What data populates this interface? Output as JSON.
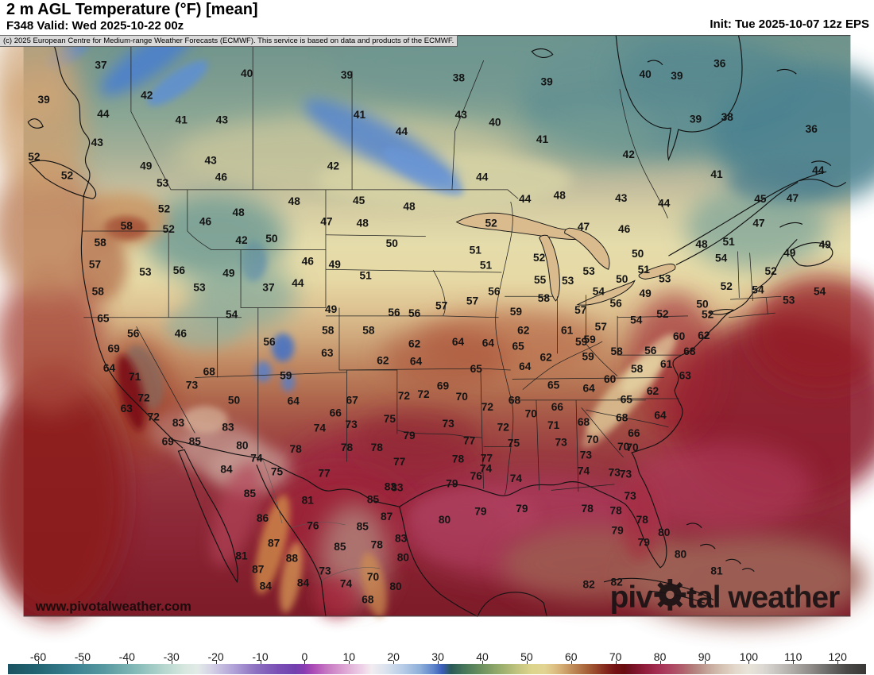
{
  "header": {
    "title": "2 m AGL Temperature (°F) [mean]",
    "valid": "F348 Valid: Wed 2025-10-22 00z",
    "init": "Init: Tue 2025-10-07 12z EPS"
  },
  "copyright": "(c) 2025 European Centre for Medium-range Weather Forecasts (ECMWF). This service is based on data and products of the ECMWF.",
  "watermark": "www.pivotalweather.com",
  "logo": {
    "left": "piv",
    "right": "tal weather"
  },
  "colorbar": {
    "ticks": [
      -60,
      -50,
      -40,
      -30,
      -20,
      -10,
      0,
      10,
      20,
      30,
      40,
      50,
      60,
      70,
      80,
      90,
      100,
      110,
      120
    ],
    "stops": [
      {
        "v": -66,
        "c": "#1b5563"
      },
      {
        "v": -60,
        "c": "#236573"
      },
      {
        "v": -52,
        "c": "#3b8191"
      },
      {
        "v": -45,
        "c": "#5899a1"
      },
      {
        "v": -38,
        "c": "#85bab8"
      },
      {
        "v": -32,
        "c": "#b3d5cd"
      },
      {
        "v": -27,
        "c": "#d7e7df"
      },
      {
        "v": -24,
        "c": "#e2eae8"
      },
      {
        "v": -21,
        "c": "#d5d2e6"
      },
      {
        "v": -16,
        "c": "#b1a2d8"
      },
      {
        "v": -11,
        "c": "#8d71c1"
      },
      {
        "v": -6,
        "c": "#7a4fb5"
      },
      {
        "v": -2,
        "c": "#7240ae"
      },
      {
        "v": 0,
        "c": "#8a3cb2"
      },
      {
        "v": 2,
        "c": "#ad4cb6"
      },
      {
        "v": 5,
        "c": "#c777c2"
      },
      {
        "v": 9,
        "c": "#dda5d3"
      },
      {
        "v": 13,
        "c": "#eed2e8"
      },
      {
        "v": 15,
        "c": "#f2ecf0"
      },
      {
        "v": 18,
        "c": "#dde4ef"
      },
      {
        "v": 22,
        "c": "#b9cde7"
      },
      {
        "v": 26,
        "c": "#8fb0da"
      },
      {
        "v": 29,
        "c": "#5f85cb"
      },
      {
        "v": 31,
        "c": "#3a5cb8"
      },
      {
        "v": 33,
        "c": "#2a5a55"
      },
      {
        "v": 36,
        "c": "#47775a"
      },
      {
        "v": 40,
        "c": "#6f925f"
      },
      {
        "v": 44,
        "c": "#98ad6c"
      },
      {
        "v": 48,
        "c": "#c2c47e"
      },
      {
        "v": 51,
        "c": "#dcd48d"
      },
      {
        "v": 54,
        "c": "#e2d492"
      },
      {
        "v": 56,
        "c": "#dec285"
      },
      {
        "v": 58,
        "c": "#d3ab72"
      },
      {
        "v": 60,
        "c": "#c28f5b"
      },
      {
        "v": 62,
        "c": "#b37647"
      },
      {
        "v": 64,
        "c": "#a45c36"
      },
      {
        "v": 66,
        "c": "#944128"
      },
      {
        "v": 68,
        "c": "#83261c"
      },
      {
        "v": 70,
        "c": "#731114"
      },
      {
        "v": 72,
        "c": "#690d10"
      },
      {
        "v": 73,
        "c": "#6f0f1d"
      },
      {
        "v": 75,
        "c": "#82152e"
      },
      {
        "v": 77,
        "c": "#93203f"
      },
      {
        "v": 79,
        "c": "#a02b4e"
      },
      {
        "v": 81,
        "c": "#aa3a5c"
      },
      {
        "v": 83,
        "c": "#ae4b64"
      },
      {
        "v": 85,
        "c": "#b05f6c"
      },
      {
        "v": 87,
        "c": "#b27878"
      },
      {
        "v": 89,
        "c": "#ba8f88"
      },
      {
        "v": 91,
        "c": "#c6a89c"
      },
      {
        "v": 94,
        "c": "#d6c3b4"
      },
      {
        "v": 97,
        "c": "#e3d8cb"
      },
      {
        "v": 100,
        "c": "#e9e4da"
      },
      {
        "v": 103,
        "c": "#ddd9d3"
      },
      {
        "v": 106,
        "c": "#cac6c2"
      },
      {
        "v": 110,
        "c": "#aeaaa6"
      },
      {
        "v": 114,
        "c": "#8e8b88"
      },
      {
        "v": 118,
        "c": "#6b6967"
      },
      {
        "v": 122,
        "c": "#4b4947"
      },
      {
        "v": 126,
        "c": "#3b3937"
      }
    ]
  },
  "map": {
    "label_color": "#141414",
    "labels": [
      [
        37,
        103,
        84
      ],
      [
        40,
        297,
        95
      ],
      [
        39,
        430,
        97
      ],
      [
        38,
        579,
        101
      ],
      [
        39,
        696,
        106
      ],
      [
        40,
        827,
        96
      ],
      [
        39,
        869,
        98
      ],
      [
        36,
        926,
        82
      ],
      [
        39,
        894,
        156
      ],
      [
        38,
        936,
        153
      ],
      [
        36,
        1048,
        169
      ],
      [
        39,
        27,
        130
      ],
      [
        42,
        164,
        124
      ],
      [
        44,
        106,
        149
      ],
      [
        41,
        210,
        157
      ],
      [
        43,
        264,
        157
      ],
      [
        43,
        582,
        150
      ],
      [
        40,
        627,
        160
      ],
      [
        41,
        690,
        183
      ],
      [
        42,
        805,
        203
      ],
      [
        41,
        922,
        229
      ],
      [
        44,
        1057,
        224
      ],
      [
        43,
        98,
        187
      ],
      [
        49,
        163,
        218
      ],
      [
        52,
        14,
        206
      ],
      [
        52,
        58,
        231
      ],
      [
        53,
        185,
        241
      ],
      [
        43,
        249,
        211
      ],
      [
        42,
        412,
        218
      ],
      [
        46,
        263,
        233
      ],
      [
        44,
        610,
        233
      ],
      [
        41,
        447,
        150
      ],
      [
        44,
        503,
        172
      ],
      [
        45,
        980,
        262
      ],
      [
        47,
        1023,
        261
      ],
      [
        49,
        1066,
        323
      ],
      [
        49,
        1019,
        334
      ],
      [
        47,
        978,
        294
      ],
      [
        48,
        902,
        322
      ],
      [
        51,
        938,
        319
      ],
      [
        54,
        928,
        341
      ],
      [
        44,
        667,
        262
      ],
      [
        48,
        713,
        257
      ],
      [
        43,
        795,
        261
      ],
      [
        44,
        852,
        268
      ],
      [
        52,
        622,
        294
      ],
      [
        47,
        745,
        299
      ],
      [
        46,
        799,
        302
      ],
      [
        48,
        360,
        265
      ],
      [
        45,
        446,
        264
      ],
      [
        48,
        513,
        272
      ],
      [
        47,
        403,
        292
      ],
      [
        48,
        451,
        294
      ],
      [
        50,
        330,
        315
      ],
      [
        50,
        490,
        321
      ],
      [
        42,
        290,
        317
      ],
      [
        52,
        187,
        275
      ],
      [
        58,
        137,
        298
      ],
      [
        52,
        193,
        302
      ],
      [
        46,
        242,
        292
      ],
      [
        48,
        286,
        280
      ],
      [
        58,
        102,
        320
      ],
      [
        57,
        95,
        349
      ],
      [
        53,
        162,
        359
      ],
      [
        56,
        207,
        357
      ],
      [
        49,
        273,
        361
      ],
      [
        53,
        234,
        380
      ],
      [
        58,
        99,
        385
      ],
      [
        46,
        378,
        345
      ],
      [
        49,
        414,
        349
      ],
      [
        51,
        455,
        364
      ],
      [
        37,
        326,
        380
      ],
      [
        44,
        365,
        374
      ],
      [
        49,
        409,
        409
      ],
      [
        54,
        277,
        416
      ],
      [
        51,
        601,
        330
      ],
      [
        51,
        615,
        350
      ],
      [
        52,
        686,
        340
      ],
      [
        53,
        752,
        358
      ],
      [
        51,
        825,
        356
      ],
      [
        53,
        853,
        368
      ],
      [
        50,
        817,
        335
      ],
      [
        55,
        687,
        370
      ],
      [
        53,
        724,
        371
      ],
      [
        50,
        796,
        369
      ],
      [
        52,
        935,
        378
      ],
      [
        52,
        994,
        358
      ],
      [
        54,
        977,
        383
      ],
      [
        54,
        765,
        385
      ],
      [
        49,
        827,
        388
      ],
      [
        56,
        626,
        385
      ],
      [
        56,
        788,
        401
      ],
      [
        53,
        1018,
        397
      ],
      [
        54,
        1059,
        385
      ],
      [
        57,
        597,
        398
      ],
      [
        58,
        692,
        394
      ],
      [
        50,
        903,
        402
      ],
      [
        59,
        655,
        412
      ],
      [
        52,
        850,
        415
      ],
      [
        57,
        741,
        410
      ],
      [
        54,
        815,
        423
      ],
      [
        52,
        910,
        416
      ],
      [
        62,
        665,
        437
      ],
      [
        61,
        723,
        437
      ],
      [
        57,
        768,
        432
      ],
      [
        60,
        872,
        445
      ],
      [
        62,
        905,
        444
      ],
      [
        57,
        556,
        404
      ],
      [
        56,
        520,
        414
      ],
      [
        58,
        405,
        437
      ],
      [
        58,
        459,
        437
      ],
      [
        56,
        493,
        413
      ],
      [
        63,
        404,
        467
      ],
      [
        62,
        520,
        455
      ],
      [
        62,
        478,
        477
      ],
      [
        64,
        522,
        478
      ],
      [
        59,
        753,
        449
      ],
      [
        59,
        751,
        472
      ],
      [
        65,
        106,
        421
      ],
      [
        56,
        146,
        441
      ],
      [
        46,
        209,
        441
      ],
      [
        69,
        120,
        461
      ],
      [
        64,
        114,
        487
      ],
      [
        71,
        148,
        499
      ],
      [
        72,
        160,
        527
      ],
      [
        73,
        224,
        510
      ],
      [
        63,
        137,
        541
      ],
      [
        72,
        173,
        552
      ],
      [
        83,
        206,
        560
      ],
      [
        69,
        192,
        585
      ],
      [
        85,
        228,
        585
      ],
      [
        68,
        247,
        492
      ],
      [
        59,
        349,
        497
      ],
      [
        50,
        280,
        530
      ],
      [
        64,
        359,
        531
      ],
      [
        67,
        437,
        530
      ],
      [
        72,
        506,
        524
      ],
      [
        66,
        415,
        547
      ],
      [
        74,
        394,
        567
      ],
      [
        73,
        436,
        562
      ],
      [
        75,
        487,
        555
      ],
      [
        78,
        470,
        593
      ],
      [
        79,
        513,
        577
      ],
      [
        83,
        272,
        566
      ],
      [
        80,
        291,
        590
      ],
      [
        78,
        362,
        595
      ],
      [
        78,
        430,
        593
      ],
      [
        74,
        310,
        607
      ],
      [
        75,
        337,
        625
      ],
      [
        77,
        400,
        627
      ],
      [
        84,
        270,
        622
      ],
      [
        77,
        500,
        612
      ],
      [
        83,
        488,
        645
      ],
      [
        56,
        327,
        452
      ],
      [
        64,
        578,
        452
      ],
      [
        64,
        618,
        454
      ],
      [
        65,
        658,
        458
      ],
      [
        59,
        742,
        452
      ],
      [
        58,
        789,
        465
      ],
      [
        56,
        834,
        464
      ],
      [
        68,
        886,
        465
      ],
      [
        61,
        855,
        482
      ],
      [
        58,
        816,
        488
      ],
      [
        63,
        880,
        497
      ],
      [
        69,
        558,
        511
      ],
      [
        70,
        583,
        525
      ],
      [
        60,
        780,
        502
      ],
      [
        62,
        695,
        473
      ],
      [
        65,
        705,
        510
      ],
      [
        64,
        752,
        514
      ],
      [
        62,
        837,
        518
      ],
      [
        65,
        602,
        488
      ],
      [
        64,
        667,
        485
      ],
      [
        65,
        802,
        529
      ],
      [
        72,
        617,
        539
      ],
      [
        66,
        710,
        539
      ],
      [
        70,
        675,
        548
      ],
      [
        68,
        653,
        530
      ],
      [
        68,
        796,
        553
      ],
      [
        64,
        847,
        550
      ],
      [
        72,
        532,
        522
      ],
      [
        73,
        565,
        561
      ],
      [
        72,
        638,
        566
      ],
      [
        71,
        705,
        563
      ],
      [
        68,
        745,
        559
      ],
      [
        66,
        812,
        574
      ],
      [
        77,
        593,
        584
      ],
      [
        75,
        652,
        587
      ],
      [
        73,
        715,
        586
      ],
      [
        70,
        757,
        582
      ],
      [
        70,
        798,
        592
      ],
      [
        78,
        578,
        608
      ],
      [
        77,
        616,
        607
      ],
      [
        73,
        748,
        603
      ],
      [
        76,
        602,
        631
      ],
      [
        74,
        615,
        621
      ],
      [
        74,
        745,
        624
      ],
      [
        79,
        570,
        641
      ],
      [
        74,
        655,
        634
      ],
      [
        73,
        786,
        626
      ],
      [
        85,
        301,
        654
      ],
      [
        81,
        378,
        663
      ],
      [
        83,
        497,
        646
      ],
      [
        85,
        465,
        662
      ],
      [
        87,
        483,
        685
      ],
      [
        86,
        318,
        687
      ],
      [
        76,
        385,
        697
      ],
      [
        85,
        451,
        698
      ],
      [
        79,
        608,
        678
      ],
      [
        79,
        663,
        674
      ],
      [
        80,
        560,
        689
      ],
      [
        83,
        502,
        714
      ],
      [
        87,
        333,
        720
      ],
      [
        85,
        421,
        725
      ],
      [
        78,
        470,
        722
      ],
      [
        81,
        290,
        737
      ],
      [
        88,
        357,
        740
      ],
      [
        80,
        505,
        739
      ],
      [
        87,
        312,
        755
      ],
      [
        73,
        401,
        757
      ],
      [
        70,
        465,
        765
      ],
      [
        84,
        322,
        777
      ],
      [
        84,
        372,
        773
      ],
      [
        74,
        429,
        774
      ],
      [
        80,
        495,
        778
      ],
      [
        68,
        458,
        795
      ],
      [
        82,
        752,
        775
      ],
      [
        78,
        750,
        674
      ],
      [
        79,
        790,
        703
      ],
      [
        70,
        810,
        593
      ],
      [
        73,
        801,
        628
      ],
      [
        73,
        807,
        657
      ],
      [
        78,
        788,
        677
      ],
      [
        78,
        823,
        689
      ],
      [
        79,
        825,
        719
      ],
      [
        80,
        852,
        706
      ],
      [
        80,
        874,
        735
      ],
      [
        81,
        922,
        757
      ],
      [
        82,
        789,
        772
      ]
    ]
  }
}
